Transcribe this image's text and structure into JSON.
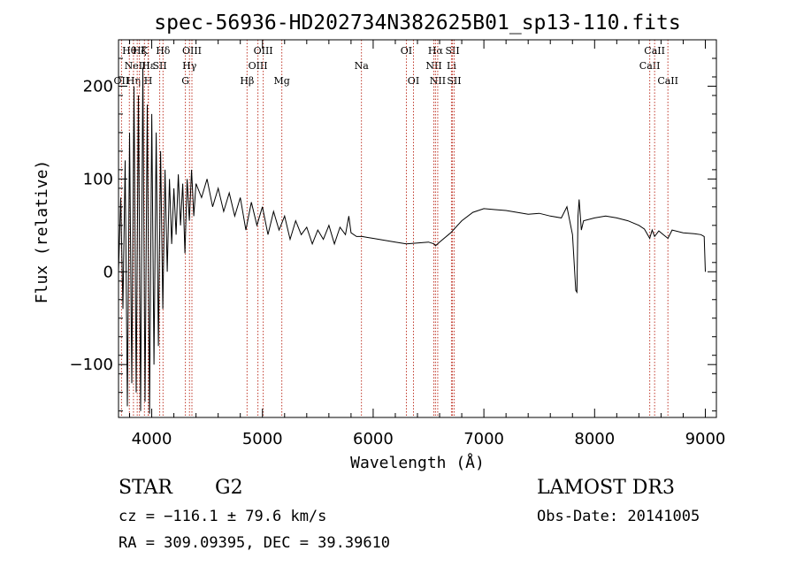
{
  "chart_data": {
    "type": "line",
    "title": "spec-56936-HD202734N382625B01_sp13-110.fits",
    "xlabel": "Wavelength (Å)",
    "ylabel": "Flux (relative)",
    "xlim": [
      3700,
      9100
    ],
    "ylim": [
      -157,
      250
    ],
    "xticks": [
      4000,
      5000,
      6000,
      7000,
      8000,
      9000
    ],
    "yticks": [
      -100,
      0,
      100,
      200
    ],
    "xtick_labels": [
      "4000",
      "5000",
      "6000",
      "7000",
      "8000",
      "9000"
    ],
    "ytick_labels": [
      "−100",
      "0",
      "100",
      "200"
    ],
    "series": [
      {
        "name": "spectrum",
        "x": [
          3700,
          3720,
          3740,
          3760,
          3780,
          3800,
          3820,
          3840,
          3860,
          3880,
          3900,
          3920,
          3940,
          3960,
          3980,
          4000,
          4020,
          4040,
          4060,
          4080,
          4100,
          4120,
          4140,
          4160,
          4180,
          4200,
          4220,
          4240,
          4260,
          4280,
          4300,
          4320,
          4340,
          4360,
          4380,
          4400,
          4450,
          4500,
          4550,
          4600,
          4650,
          4700,
          4750,
          4800,
          4850,
          4900,
          4950,
          5000,
          5050,
          5100,
          5150,
          5200,
          5250,
          5300,
          5350,
          5400,
          5450,
          5500,
          5550,
          5600,
          5650,
          5700,
          5750,
          5780,
          5800,
          5850,
          5900,
          5950,
          6000,
          6100,
          6200,
          6300,
          6400,
          6500,
          6550,
          6563,
          6600,
          6700,
          6800,
          6900,
          7000,
          7100,
          7200,
          7300,
          7400,
          7500,
          7600,
          7700,
          7750,
          7800,
          7830,
          7840,
          7850,
          7860,
          7880,
          7900,
          8000,
          8100,
          8200,
          8300,
          8400,
          8450,
          8498,
          8520,
          8542,
          8580,
          8620,
          8662,
          8700,
          8800,
          8900,
          8960,
          8990,
          9000
        ],
        "y": [
          0,
          80,
          -40,
          120,
          -145,
          150,
          -120,
          200,
          -130,
          190,
          -150,
          220,
          -140,
          180,
          -153,
          170,
          -100,
          150,
          -80,
          130,
          -40,
          110,
          0,
          100,
          30,
          90,
          40,
          105,
          50,
          95,
          20,
          100,
          55,
          110,
          60,
          95,
          80,
          100,
          70,
          90,
          65,
          85,
          60,
          80,
          45,
          75,
          50,
          70,
          40,
          65,
          45,
          60,
          35,
          55,
          40,
          48,
          30,
          45,
          35,
          50,
          30,
          48,
          40,
          60,
          42,
          38,
          38,
          37,
          36,
          34,
          32,
          30,
          31,
          32,
          30,
          28,
          32,
          42,
          55,
          64,
          68,
          67,
          66,
          64,
          62,
          63,
          60,
          58,
          70,
          40,
          -20,
          -22,
          60,
          78,
          45,
          55,
          58,
          60,
          58,
          55,
          50,
          46,
          36,
          45,
          38,
          44,
          40,
          36,
          45,
          42,
          41,
          40,
          38,
          0
        ]
      }
    ],
    "lines": [
      {
        "wavelength": 3727,
        "label": "OII",
        "row": 3
      },
      {
        "wavelength": 3798,
        "label": "Hθ",
        "row": 1
      },
      {
        "wavelength": 3835,
        "label": "Hη",
        "row": 3
      },
      {
        "wavelength": 3869,
        "label": "NeIII",
        "row": 2
      },
      {
        "wavelength": 3889,
        "label": "Hζ",
        "row": 1
      },
      {
        "wavelength": 3934,
        "label": "K",
        "row": 1
      },
      {
        "wavelength": 3968,
        "label": "H",
        "row": 3
      },
      {
        "wavelength": 3970,
        "label": "Hε",
        "row": 2
      },
      {
        "wavelength": 4072,
        "label": "SII",
        "row": 2
      },
      {
        "wavelength": 4102,
        "label": "Hδ",
        "row": 1
      },
      {
        "wavelength": 4304,
        "label": "G",
        "row": 3
      },
      {
        "wavelength": 4341,
        "label": "Hγ",
        "row": 2
      },
      {
        "wavelength": 4363,
        "label": "OIII",
        "row": 1
      },
      {
        "wavelength": 4861,
        "label": "Hβ",
        "row": 3
      },
      {
        "wavelength": 4959,
        "label": "OIII",
        "row": 2
      },
      {
        "wavelength": 5007,
        "label": "OIII",
        "row": 1
      },
      {
        "wavelength": 5175,
        "label": "Mg",
        "row": 3
      },
      {
        "wavelength": 5894,
        "label": "Na",
        "row": 2
      },
      {
        "wavelength": 6300,
        "label": "OI",
        "row": 1
      },
      {
        "wavelength": 6364,
        "label": "OI",
        "row": 3
      },
      {
        "wavelength": 6548,
        "label": "NII",
        "row": 2
      },
      {
        "wavelength": 6563,
        "label": "Hα",
        "row": 1
      },
      {
        "wavelength": 6583,
        "label": "NII",
        "row": 3
      },
      {
        "wavelength": 6707,
        "label": "Li",
        "row": 2
      },
      {
        "wavelength": 6716,
        "label": "SII",
        "row": 1
      },
      {
        "wavelength": 6731,
        "label": "SII",
        "row": 3
      },
      {
        "wavelength": 8498,
        "label": "CaII",
        "row": 2
      },
      {
        "wavelength": 8542,
        "label": "CaII",
        "row": 1
      },
      {
        "wavelength": 8662,
        "label": "CaII",
        "row": 3
      }
    ]
  },
  "info": {
    "object_class": "STAR",
    "subclass": "G2",
    "survey": "LAMOST DR3",
    "cz": "cz = −116.1 ± 79.6 km/s",
    "obs_date": "Obs-Date: 20141005",
    "coords": "RA = 309.09395, DEC =  39.39610"
  },
  "colors": {
    "line_marker": "#c0392b",
    "spectrum": "#000000"
  }
}
